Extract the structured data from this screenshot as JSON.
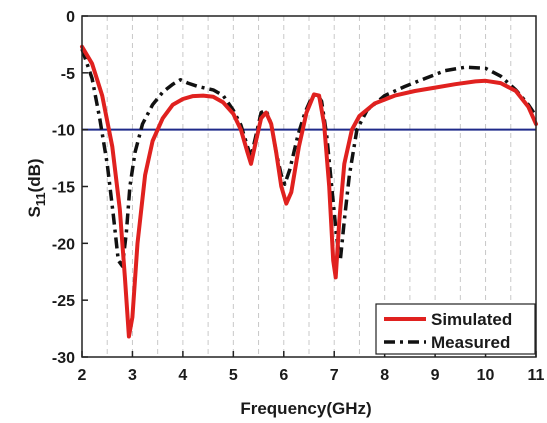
{
  "chart_data": {
    "type": "line",
    "xlabel": "Frequency(GHz)",
    "ylabel_main": "S",
    "ylabel_sub": "11",
    "ylabel_unit": "(dB)",
    "xlim": [
      2,
      11
    ],
    "ylim": [
      -30,
      0
    ],
    "x_ticks": [
      2,
      3,
      4,
      5,
      6,
      7,
      8,
      9,
      10,
      11
    ],
    "y_ticks": [
      0,
      -5,
      -10,
      -15,
      -20,
      -25,
      -30
    ],
    "x_tick_labels": [
      "2",
      "3",
      "4",
      "5",
      "6",
      "7",
      "8",
      "9",
      "10",
      "11"
    ],
    "y_tick_labels": [
      "0",
      "-5",
      "-10",
      "-15",
      "-20",
      "-25",
      "-30"
    ],
    "grid": "vertical dashed at every 0.5 GHz",
    "legend_position": "bottom-right",
    "reference_line": {
      "y": -10,
      "color": "#1f2a8a"
    },
    "series": [
      {
        "name": "Simulated",
        "color": "#e0211f",
        "style": "solid",
        "points": [
          [
            2.0,
            -2.7
          ],
          [
            2.2,
            -4.2
          ],
          [
            2.4,
            -7.0
          ],
          [
            2.6,
            -11.5
          ],
          [
            2.75,
            -17.0
          ],
          [
            2.85,
            -23.0
          ],
          [
            2.93,
            -28.2
          ],
          [
            3.0,
            -26.5
          ],
          [
            3.1,
            -20.0
          ],
          [
            3.25,
            -14.0
          ],
          [
            3.4,
            -11.0
          ],
          [
            3.6,
            -9.0
          ],
          [
            3.8,
            -7.8
          ],
          [
            4.0,
            -7.3
          ],
          [
            4.2,
            -7.05
          ],
          [
            4.4,
            -7.0
          ],
          [
            4.6,
            -7.1
          ],
          [
            4.8,
            -7.6
          ],
          [
            5.0,
            -8.6
          ],
          [
            5.15,
            -10.0
          ],
          [
            5.28,
            -12.0
          ],
          [
            5.35,
            -13.0
          ],
          [
            5.45,
            -11.0
          ],
          [
            5.55,
            -9.0
          ],
          [
            5.65,
            -8.5
          ],
          [
            5.75,
            -9.5
          ],
          [
            5.85,
            -12.0
          ],
          [
            5.95,
            -15.0
          ],
          [
            6.05,
            -16.5
          ],
          [
            6.15,
            -15.5
          ],
          [
            6.3,
            -11.5
          ],
          [
            6.45,
            -8.5
          ],
          [
            6.6,
            -6.9
          ],
          [
            6.7,
            -7.0
          ],
          [
            6.8,
            -9.5
          ],
          [
            6.9,
            -15.0
          ],
          [
            6.98,
            -21.5
          ],
          [
            7.03,
            -23.0
          ],
          [
            7.1,
            -18.0
          ],
          [
            7.2,
            -13.0
          ],
          [
            7.35,
            -10.0
          ],
          [
            7.5,
            -8.8
          ],
          [
            7.8,
            -7.7
          ],
          [
            8.2,
            -7.0
          ],
          [
            8.6,
            -6.6
          ],
          [
            9.0,
            -6.3
          ],
          [
            9.4,
            -6.0
          ],
          [
            9.8,
            -5.75
          ],
          [
            10.0,
            -5.7
          ],
          [
            10.3,
            -5.9
          ],
          [
            10.6,
            -6.6
          ],
          [
            10.85,
            -8.0
          ],
          [
            11.0,
            -9.5
          ]
        ]
      },
      {
        "name": "Measured",
        "color": "#111111",
        "style": "dash-dot",
        "points": [
          [
            2.0,
            -2.9
          ],
          [
            2.2,
            -5.5
          ],
          [
            2.35,
            -9.0
          ],
          [
            2.5,
            -13.0
          ],
          [
            2.62,
            -17.5
          ],
          [
            2.72,
            -21.5
          ],
          [
            2.8,
            -22.0
          ],
          [
            2.88,
            -19.0
          ],
          [
            2.95,
            -15.0
          ],
          [
            3.05,
            -12.0
          ],
          [
            3.2,
            -9.5
          ],
          [
            3.4,
            -7.8
          ],
          [
            3.6,
            -6.7
          ],
          [
            3.8,
            -6.0
          ],
          [
            3.95,
            -5.6
          ],
          [
            4.1,
            -5.9
          ],
          [
            4.3,
            -6.2
          ],
          [
            4.6,
            -6.5
          ],
          [
            4.8,
            -7.0
          ],
          [
            5.0,
            -8.3
          ],
          [
            5.15,
            -9.6
          ],
          [
            5.28,
            -11.5
          ],
          [
            5.35,
            -12.4
          ],
          [
            5.45,
            -10.5
          ],
          [
            5.55,
            -8.5
          ],
          [
            5.65,
            -8.3
          ],
          [
            5.75,
            -9.5
          ],
          [
            5.85,
            -12.0
          ],
          [
            5.95,
            -14.0
          ],
          [
            6.02,
            -14.8
          ],
          [
            6.12,
            -13.5
          ],
          [
            6.28,
            -10.5
          ],
          [
            6.42,
            -8.5
          ],
          [
            6.55,
            -7.2
          ],
          [
            6.65,
            -6.8
          ],
          [
            6.75,
            -7.5
          ],
          [
            6.85,
            -10.5
          ],
          [
            6.95,
            -15.0
          ],
          [
            7.05,
            -19.5
          ],
          [
            7.12,
            -21.5
          ],
          [
            7.2,
            -18.0
          ],
          [
            7.3,
            -14.0
          ],
          [
            7.45,
            -10.0
          ],
          [
            7.65,
            -8.3
          ],
          [
            8.0,
            -7.0
          ],
          [
            8.4,
            -6.2
          ],
          [
            8.8,
            -5.5
          ],
          [
            9.2,
            -4.8
          ],
          [
            9.6,
            -4.5
          ],
          [
            10.0,
            -4.6
          ],
          [
            10.3,
            -5.3
          ],
          [
            10.6,
            -6.5
          ],
          [
            10.85,
            -7.8
          ],
          [
            11.0,
            -8.8
          ]
        ]
      }
    ]
  }
}
